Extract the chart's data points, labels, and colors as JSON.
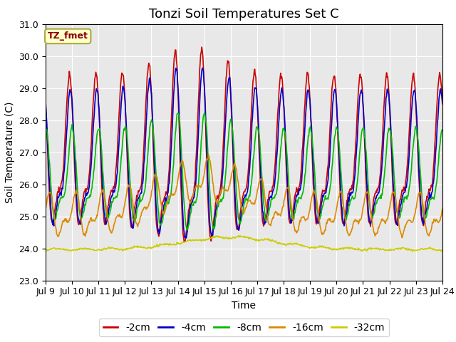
{
  "title": "Tonzi Soil Temperatures Set C",
  "xlabel": "Time",
  "ylabel": "Soil Temperature (C)",
  "ylim": [
    23.0,
    31.0
  ],
  "yticks": [
    23.0,
    24.0,
    25.0,
    26.0,
    27.0,
    28.0,
    29.0,
    30.0,
    31.0
  ],
  "xtick_labels": [
    "Jul 9",
    "Jul 10",
    "Jul 11",
    "Jul 12",
    "Jul 13",
    "Jul 14",
    "Jul 15",
    "Jul 16",
    "Jul 17",
    "Jul 18",
    "Jul 19",
    "Jul 20",
    "Jul 21",
    "Jul 22",
    "Jul 23",
    "Jul 24"
  ],
  "series_colors": [
    "#cc0000",
    "#0000cc",
    "#00bb00",
    "#dd8800",
    "#cccc00"
  ],
  "series_labels": [
    "-2cm",
    "-4cm",
    "-8cm",
    "-16cm",
    "-32cm"
  ],
  "annotation_text": "TZ_fmet",
  "annotation_color": "#880000",
  "annotation_bg": "#ffffcc",
  "annotation_border": "#aaaa44",
  "background_color": "#e8e8e8",
  "fig_bg": "#ffffff",
  "grid_color": "#ffffff",
  "title_fontsize": 13,
  "axis_label_fontsize": 10,
  "tick_fontsize": 9,
  "legend_fontsize": 10
}
